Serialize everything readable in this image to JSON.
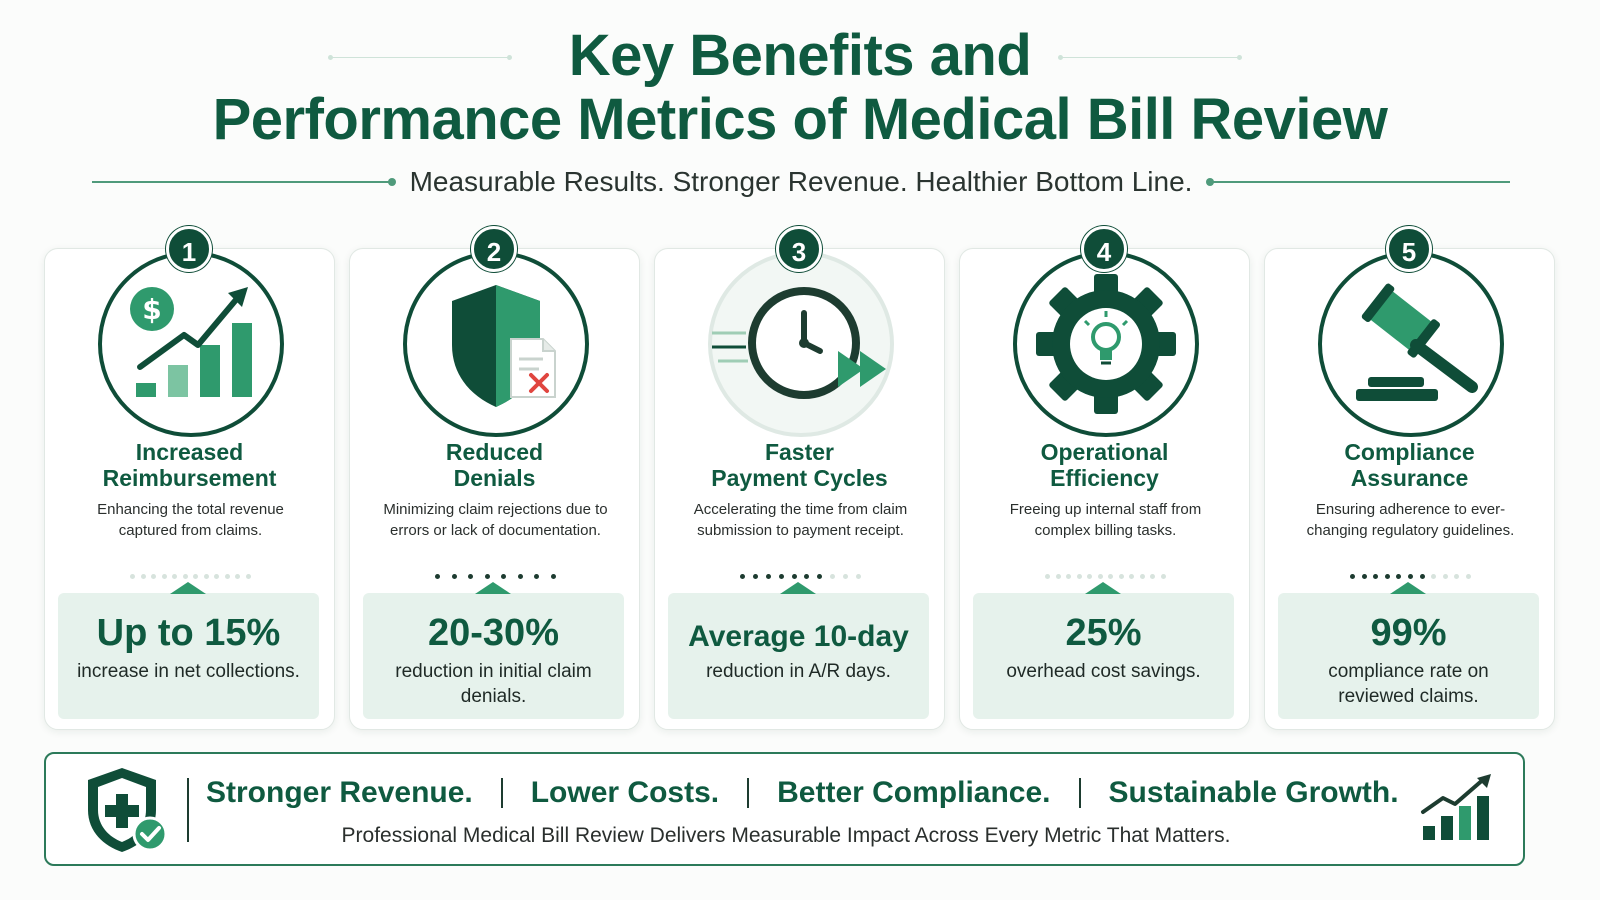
{
  "header": {
    "title_line1": "Key Benefits and",
    "title_line2": "Performance Metrics of Medical Bill Review",
    "subtitle": "Measurable Results. Stronger Revenue. Healthier Bottom Line."
  },
  "colors": {
    "brand_dark": "#0f4d38",
    "brand_text": "#0f5a40",
    "accent": "#2f9a6d",
    "metric_bg": "#e6f2ec"
  },
  "cards": [
    {
      "number": "1",
      "icon": "revenue-growth-chart-icon",
      "title_line1": "Increased",
      "title_line2": "Reimbursement",
      "description": "Enhancing the total revenue captured from claims.",
      "metric_value": "Up to 15%",
      "metric_text": "increase in net collections."
    },
    {
      "number": "2",
      "icon": "shield-document-denied-icon",
      "title_line1": "Reduced",
      "title_line2": "Denials",
      "description": "Minimizing claim rejections due to errors or lack of documentation.",
      "metric_value": "20-30%",
      "metric_text": "reduction in initial claim denials."
    },
    {
      "number": "3",
      "icon": "fast-clock-icon",
      "title_line1": "Faster",
      "title_line2": "Payment Cycles",
      "description": "Accelerating the time from claim submission to payment receipt.",
      "metric_value": "Average 10-day",
      "metric_text": "reduction in A/R days."
    },
    {
      "number": "4",
      "icon": "gear-lightbulb-icon",
      "title_line1": "Operational",
      "title_line2": "Efficiency",
      "description": "Freeing up internal staff from complex billing tasks.",
      "metric_value": "25%",
      "metric_text": "overhead cost savings."
    },
    {
      "number": "5",
      "icon": "gavel-icon",
      "title_line1": "Compliance",
      "title_line2": "Assurance",
      "description": "Ensuring adherence to ever-changing regulatory guidelines.",
      "metric_value": "99%",
      "metric_text": "compliance rate on reviewed claims."
    }
  ],
  "footer": {
    "shield_icon": "medical-shield-check-icon",
    "chart_icon": "growth-bars-icon",
    "headline": [
      "Stronger Revenue.",
      "Lower Costs.",
      "Better Compliance.",
      "Sustainable Growth."
    ],
    "tagline": "Professional Medical Bill Review Delivers Measurable Impact Across Every Metric That Matters."
  }
}
